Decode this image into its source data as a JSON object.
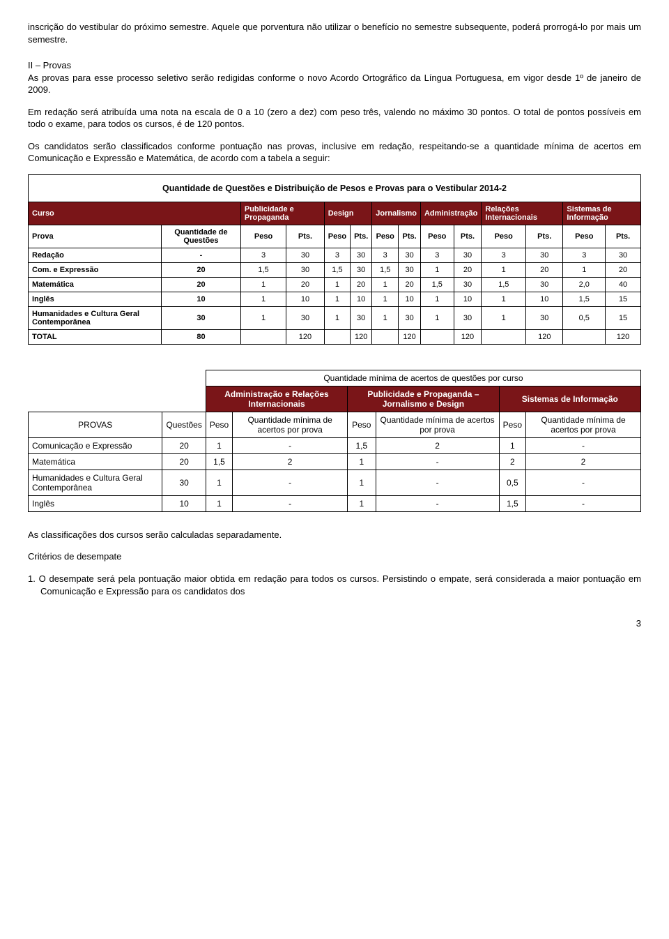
{
  "intro": {
    "p1": "inscrição do vestibular do próximo semestre. Aquele que porventura não utilizar o benefício no semestre subsequente, poderá prorrogá-lo por mais um semestre.",
    "h2": "II – Provas",
    "p2": "As provas para esse processo seletivo serão redigidas conforme o novo Acordo Ortográfico da Língua Portuguesa, em vigor desde 1º de janeiro de 2009.",
    "p3": "Em redação será atribuída uma nota na escala de 0 a 10 (zero a dez) com peso três, valendo no máximo 30 pontos. O total de pontos possíveis em todo o exame, para todos os cursos, é de 120 pontos.",
    "p4": "Os candidatos serão classificados conforme pontuação nas provas, inclusive em redação, respeitando-se a quantidade mínima de acertos em Comunicação e Expressão e Matemática, de acordo com a tabela a seguir:"
  },
  "table1": {
    "title": "Quantidade de Questões e Distribuição de Pesos e Provas para o Vestibular 2014-2",
    "hdr1": {
      "curso": "Curso",
      "c1": "Publicidade e Propaganda",
      "c2": "Design",
      "c3": "Jornalismo",
      "c4": "Administração",
      "c5": "Relações Internacionais",
      "c6": "Sistemas de Informação"
    },
    "hdr2": {
      "prova": "Prova",
      "qtd": "Quantidade de Questões",
      "peso": "Peso",
      "pts": "Pts."
    },
    "rows": [
      {
        "label": "Redação",
        "qtd": "-",
        "v": [
          "3",
          "30",
          "3",
          "30",
          "3",
          "30",
          "3",
          "30",
          "3",
          "30",
          "3",
          "30"
        ]
      },
      {
        "label": "Com. e Expressão",
        "qtd": "20",
        "v": [
          "1,5",
          "30",
          "1,5",
          "30",
          "1,5",
          "30",
          "1",
          "20",
          "1",
          "20",
          "1",
          "20"
        ]
      },
      {
        "label": "Matemática",
        "qtd": "20",
        "v": [
          "1",
          "20",
          "1",
          "20",
          "1",
          "20",
          "1,5",
          "30",
          "1,5",
          "30",
          "2,0",
          "40"
        ]
      },
      {
        "label": "Inglês",
        "qtd": "10",
        "v": [
          "1",
          "10",
          "1",
          "10",
          "1",
          "10",
          "1",
          "10",
          "1",
          "10",
          "1,5",
          "15"
        ]
      },
      {
        "label": "Humanidades e Cultura Geral Contemporânea",
        "qtd": "30",
        "v": [
          "1",
          "30",
          "1",
          "30",
          "1",
          "30",
          "1",
          "30",
          "1",
          "30",
          "0,5",
          "15"
        ]
      },
      {
        "label": "TOTAL",
        "qtd": "80",
        "v": [
          "",
          "120",
          "",
          "120",
          "",
          "120",
          "",
          "120",
          "",
          "120",
          "",
          "120"
        ]
      }
    ]
  },
  "table2": {
    "title": "Quantidade mínima de acertos de questões por curso",
    "groups": {
      "g1": "Administração e Relações Internacionais",
      "g2": "Publicidade e Propaganda – Jornalismo e Design",
      "g3": "Sistemas de Informação"
    },
    "sub": {
      "provas": "PROVAS",
      "questoes": "Questões",
      "peso": "Peso",
      "qmin": "Quantidade mínima de acertos por prova"
    },
    "rows": [
      {
        "label": "Comunicação e Expressão",
        "q": "20",
        "v": [
          "1",
          "-",
          "1,5",
          "2",
          "1",
          "-"
        ]
      },
      {
        "label": "Matemática",
        "q": "20",
        "v": [
          "1,5",
          "2",
          "1",
          "-",
          "2",
          "2"
        ]
      },
      {
        "label": "Humanidades e Cultura Geral Contemporânea",
        "q": "30",
        "v": [
          "1",
          "-",
          "1",
          "-",
          "0,5",
          "-"
        ]
      },
      {
        "label": "Inglês",
        "q": "10",
        "v": [
          "1",
          "-",
          "1",
          "-",
          "1,5",
          "-"
        ]
      }
    ]
  },
  "footer": {
    "p1": "As classificações dos cursos serão calculadas separadamente.",
    "h": "Critérios de desempate",
    "li1": "1.  O desempate será pela pontuação maior obtida em redação para todos os cursos. Persistindo o empate, será considerada a maior pontuação em Comunicação e Expressão para os candidatos dos",
    "page": "3"
  }
}
